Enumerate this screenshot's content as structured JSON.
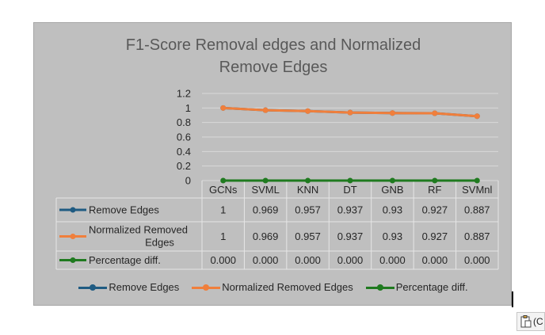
{
  "chart_data": {
    "type": "line",
    "title_line1": "F1-Score  Removal edges and Normalized",
    "title_line2": "Remove Edges",
    "categories": [
      "GCNs",
      "SVML",
      "KNN",
      "DT",
      "GNB",
      "RF",
      "SVMnl"
    ],
    "yticks": [
      "1.2",
      "1",
      "0.8",
      "0.6",
      "0.4",
      "0.2",
      "0"
    ],
    "ylim": [
      0,
      1.2
    ],
    "grid": true,
    "legend_position": "bottom",
    "series": [
      {
        "name": "Remove Edges",
        "color": "#1f5b82",
        "values": [
          1,
          0.969,
          0.957,
          0.937,
          0.93,
          0.927,
          0.887
        ],
        "labels": [
          "1",
          "0.969",
          "0.957",
          "0.937",
          "0.93",
          "0.927",
          "0.887"
        ]
      },
      {
        "name": "Normalized Removed Edges",
        "name_line1": "Normalized Removed",
        "name_line2": "Edges",
        "color": "#f07f3c",
        "values": [
          1,
          0.969,
          0.957,
          0.937,
          0.93,
          0.927,
          0.887
        ],
        "labels": [
          "1",
          "0.969",
          "0.957",
          "0.937",
          "0.93",
          "0.927",
          "0.887"
        ]
      },
      {
        "name": "Percentage diff.",
        "color": "#1f7a1f",
        "values": [
          0,
          0,
          0,
          0,
          0,
          0,
          0
        ],
        "labels": [
          "0.000",
          "0.000",
          "0.000",
          "0.000",
          "0.000",
          "0.000",
          "0.000"
        ]
      }
    ]
  },
  "paste_options": {
    "text": "(C",
    "icon": "clipboard-icon"
  }
}
